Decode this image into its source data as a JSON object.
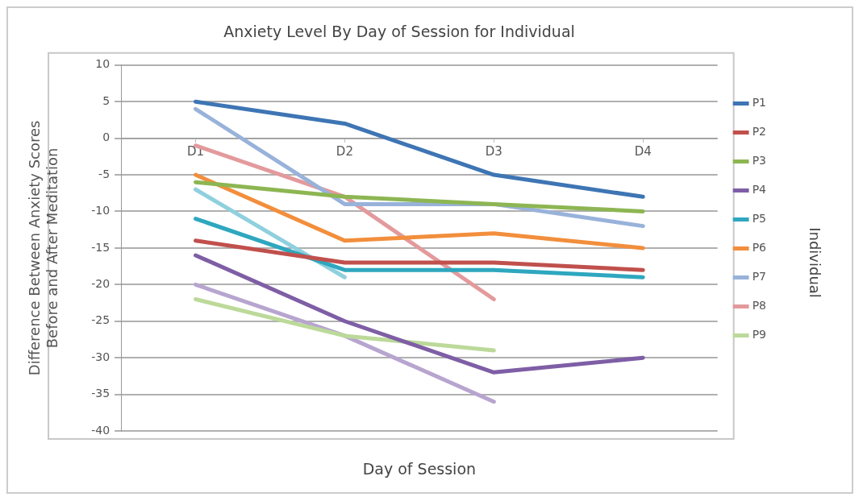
{
  "chart_data": {
    "type": "line",
    "title": "Anxiety Level By Day of Session for Individual",
    "xlabel": "Day of Session",
    "ylabel": "Difference Between Anxiety Scores Before and After Meditation",
    "legend_title": "Individual",
    "categories": [
      "D1",
      "D2",
      "D3",
      "D4"
    ],
    "series": [
      {
        "name": "P1",
        "color": "#3e75b4",
        "values": [
          5,
          2,
          -5,
          -8
        ]
      },
      {
        "name": "P2",
        "color": "#c0504d",
        "values": [
          -14,
          -17,
          -17,
          -18
        ]
      },
      {
        "name": "P3",
        "color": "#8db653",
        "values": [
          -6,
          -8,
          -9,
          -10
        ]
      },
      {
        "name": "P4",
        "color": "#7e5ea5",
        "values": [
          -16,
          -25,
          -32,
          -30
        ]
      },
      {
        "name": "P5",
        "color": "#2ea7bf",
        "values": [
          -11,
          -18,
          -18,
          -19
        ]
      },
      {
        "name": "P6",
        "color": "#f28e3c",
        "values": [
          -5,
          -14,
          -13,
          -15
        ]
      },
      {
        "name": "P7",
        "color": "#98b2da",
        "values": [
          4,
          -9,
          -9,
          -12
        ]
      },
      {
        "name": "P8",
        "color": "#e39a9c",
        "values": [
          -1,
          -8,
          -22,
          null
        ]
      },
      {
        "name": "P9",
        "color": "#bcd99a",
        "values": [
          -22,
          -27,
          -29,
          null
        ]
      },
      {
        "color": "#b7a5cf",
        "values": [
          -20,
          -27,
          -36,
          null
        ]
      },
      {
        "color": "#8fd0de",
        "values": [
          -7,
          -19,
          null,
          null
        ]
      }
    ],
    "ylim": [
      -40,
      10
    ],
    "yticks": [
      -40,
      -35,
      -30,
      -25,
      -20,
      -15,
      -10,
      -5,
      0,
      5,
      10
    ],
    "grid": "y",
    "legend": "right",
    "marker": "none",
    "line_style": "solid"
  }
}
